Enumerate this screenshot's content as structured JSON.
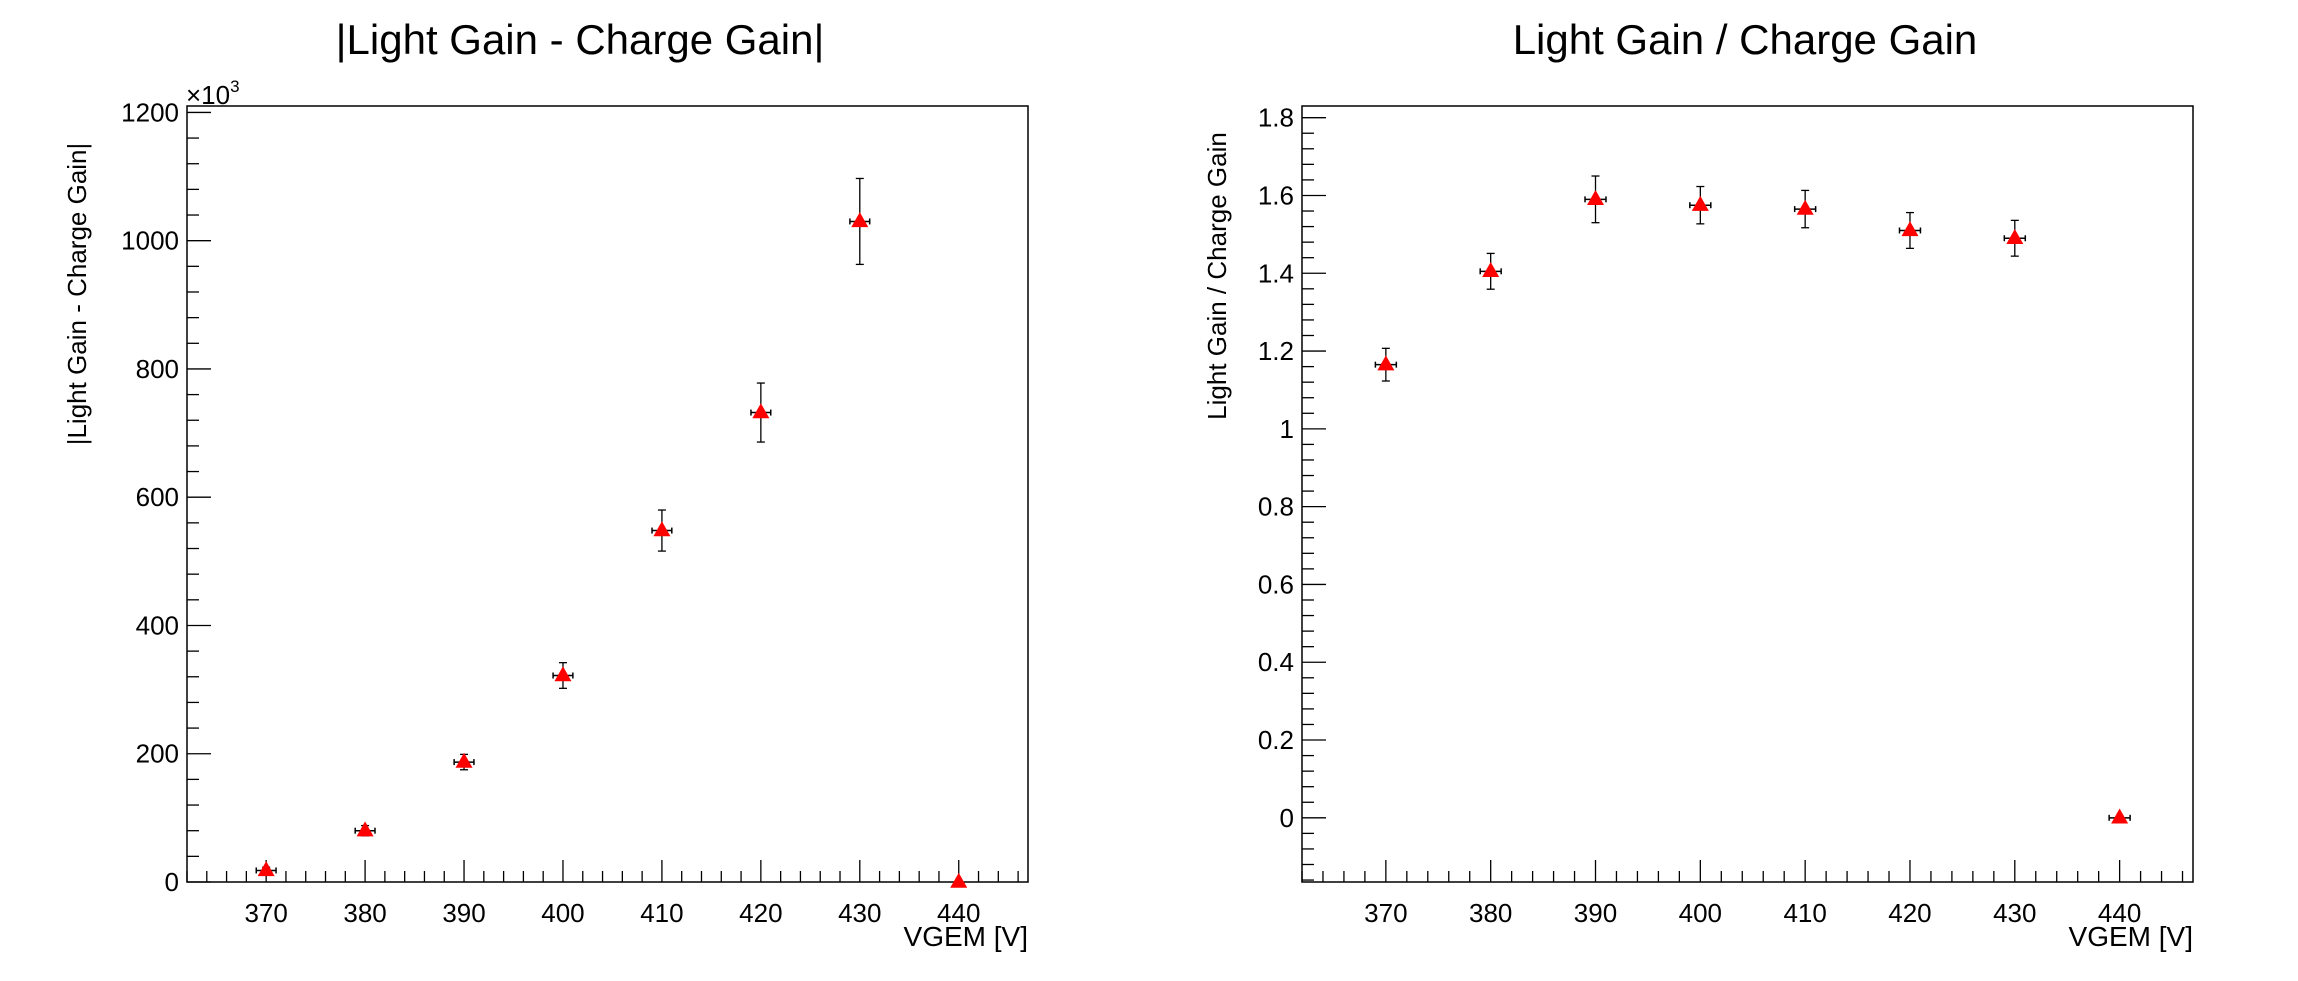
{
  "colors": {
    "marker": "#ff0000",
    "axis": "#000000",
    "background": "#ffffff"
  },
  "chart_data": [
    {
      "type": "scatter",
      "title": "|Light Gain - Charge Gain|",
      "xlabel": "VGEM [V]",
      "ylabel": "|Light Gain - Charge Gain|",
      "y_exponent_label": "×10",
      "y_exponent_power": "3",
      "xlim": [
        362,
        447
      ],
      "ylim": [
        0,
        1210
      ],
      "x_ticks": [
        370,
        380,
        390,
        400,
        410,
        420,
        430,
        440
      ],
      "y_ticks": [
        0,
        200,
        400,
        600,
        800,
        1000,
        1200
      ],
      "grid": false,
      "legend": "none",
      "marker": "triangle",
      "series": [
        {
          "x": [
            370,
            380,
            390,
            400,
            410,
            420,
            430,
            440
          ],
          "y": [
            18,
            80,
            187,
            322,
            548,
            732,
            1030,
            0
          ],
          "y_err": [
            5,
            8,
            12,
            20,
            32,
            46,
            67,
            0
          ],
          "x_err": [
            1,
            1,
            1,
            1,
            1,
            1,
            1,
            0
          ]
        }
      ]
    },
    {
      "type": "scatter",
      "title": "Light Gain / Charge Gain",
      "xlabel": "VGEM [V]",
      "ylabel": "Light Gain / Charge Gain",
      "xlim": [
        362,
        447
      ],
      "ylim": [
        -0.165,
        1.83
      ],
      "x_ticks": [
        370,
        380,
        390,
        400,
        410,
        420,
        430,
        440
      ],
      "y_ticks": [
        0,
        0.2,
        0.4,
        0.6,
        0.8,
        1,
        1.2,
        1.4,
        1.6,
        1.8
      ],
      "y_tick_labels": [
        "0",
        "0.2",
        "0.4",
        "0.6",
        "0.8",
        "1",
        "1.2",
        "1.4",
        "1.6",
        "1.8"
      ],
      "grid": false,
      "legend": "none",
      "marker": "triangle",
      "series": [
        {
          "x": [
            370,
            380,
            390,
            400,
            410,
            420,
            430,
            440
          ],
          "y": [
            1.165,
            1.405,
            1.59,
            1.575,
            1.565,
            1.51,
            1.49,
            0
          ],
          "y_err": [
            0.042,
            0.046,
            0.06,
            0.048,
            0.048,
            0.046,
            0.046,
            0.004
          ],
          "x_err": [
            1,
            1,
            1,
            1,
            1,
            1,
            1,
            1
          ]
        }
      ]
    }
  ]
}
